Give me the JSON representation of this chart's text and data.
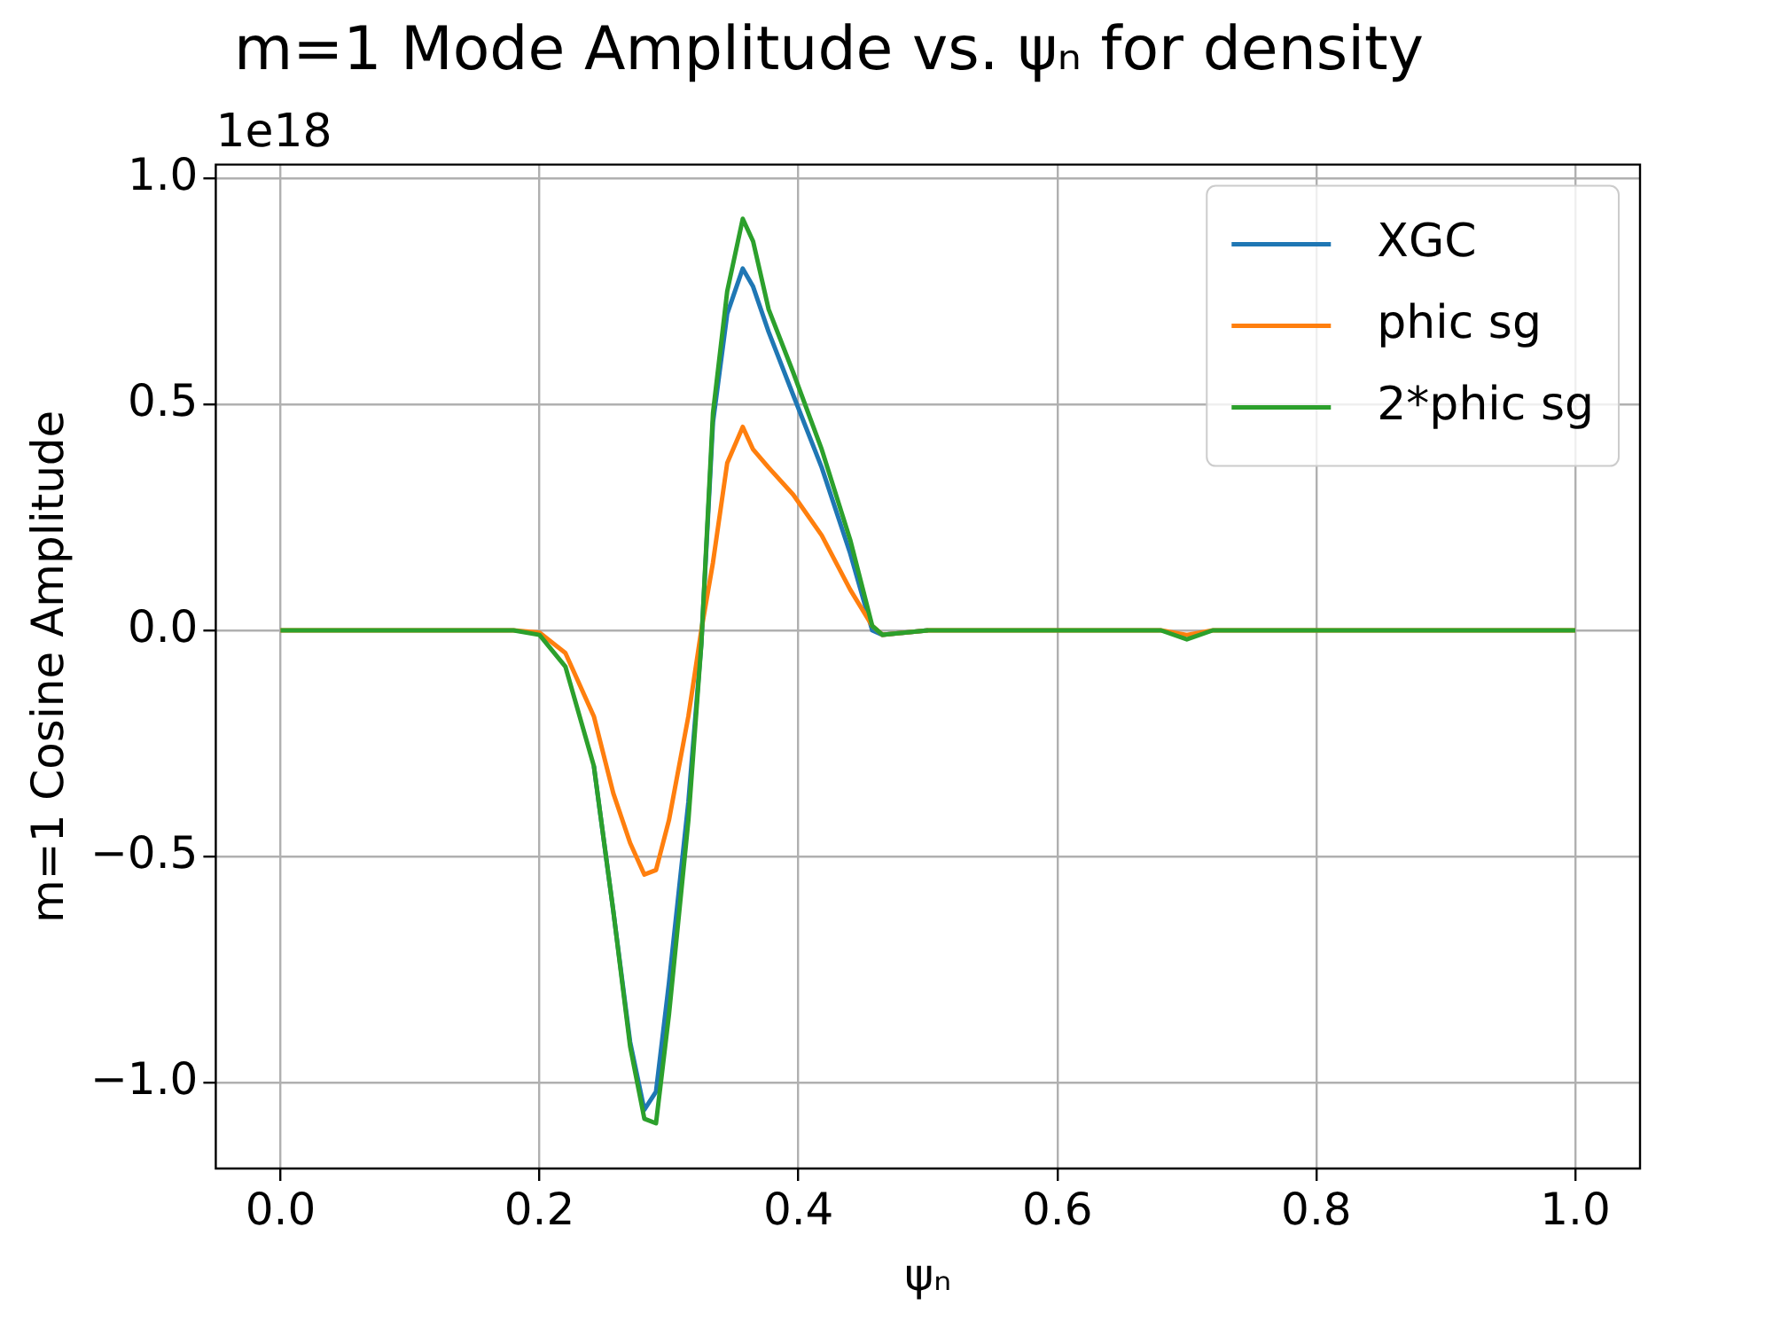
{
  "chart_data": {
    "type": "line",
    "title": "m=1 Mode Amplitude vs. ψₙ for density",
    "xlabel": "ψₙ",
    "ylabel": "m=1 Cosine Amplitude",
    "annotations": [
      "1e18"
    ],
    "x": [
      0,
      0.1,
      0.18,
      0.2,
      0.22,
      0.242,
      0.257,
      0.27,
      0.281,
      0.29,
      0.3,
      0.315,
      0.325,
      0.334,
      0.345,
      0.357,
      0.365,
      0.377,
      0.396,
      0.418,
      0.44,
      0.457,
      0.465,
      0.5,
      0.6,
      0.68,
      0.7,
      0.72,
      0.8,
      1.0
    ],
    "series": [
      {
        "name": "XGC",
        "color": "#1f77b4",
        "values": [
          null,
          null,
          null,
          null,
          null,
          -0.3,
          -0.62,
          -0.91,
          -1.06,
          -1.02,
          -0.78,
          -0.38,
          -0.03,
          0.46,
          0.7,
          0.8,
          0.76,
          0.66,
          0.52,
          0.36,
          0.17,
          0,
          -0.01,
          0,
          null,
          null,
          null,
          null,
          null,
          null
        ]
      },
      {
        "name": "phic sg",
        "color": "#ff7f0e",
        "values": [
          0,
          0,
          0,
          -0.005,
          -0.05,
          -0.19,
          -0.36,
          -0.47,
          -0.54,
          -0.53,
          -0.42,
          -0.19,
          0,
          0.15,
          0.37,
          0.45,
          0.4,
          0.36,
          0.3,
          0.21,
          0.09,
          0.01,
          -0.01,
          0,
          0,
          0,
          -0.01,
          0,
          0,
          0
        ]
      },
      {
        "name": "2*phic sg",
        "color": "#2ca02c",
        "values": [
          0,
          0,
          0,
          -0.01,
          -0.08,
          -0.3,
          -0.62,
          -0.92,
          -1.08,
          -1.09,
          -0.85,
          -0.42,
          -0.03,
          0.48,
          0.75,
          0.91,
          0.86,
          0.71,
          0.57,
          0.4,
          0.2,
          0.01,
          -0.01,
          0,
          0,
          0,
          -0.02,
          0,
          0,
          0
        ]
      }
    ],
    "xlim": [
      -0.05,
      1.05
    ],
    "xticks": [
      {
        "value": 0,
        "label": "0.0"
      },
      0.2,
      0.4,
      0.6,
      0.8,
      {
        "value": 1,
        "label": "1.0"
      }
    ],
    "ylim": [
      -1.19,
      1.03
    ],
    "yticks": [
      {
        "value": -1,
        "label": "−1.0"
      },
      {
        "value": -0.5,
        "label": "−0.5"
      },
      {
        "value": 0,
        "label": "0.0"
      },
      0.5,
      {
        "value": 1,
        "label": "1.0"
      }
    ],
    "grid": true,
    "legend": "top right",
    "marker": "none",
    "line_style": "solid"
  }
}
